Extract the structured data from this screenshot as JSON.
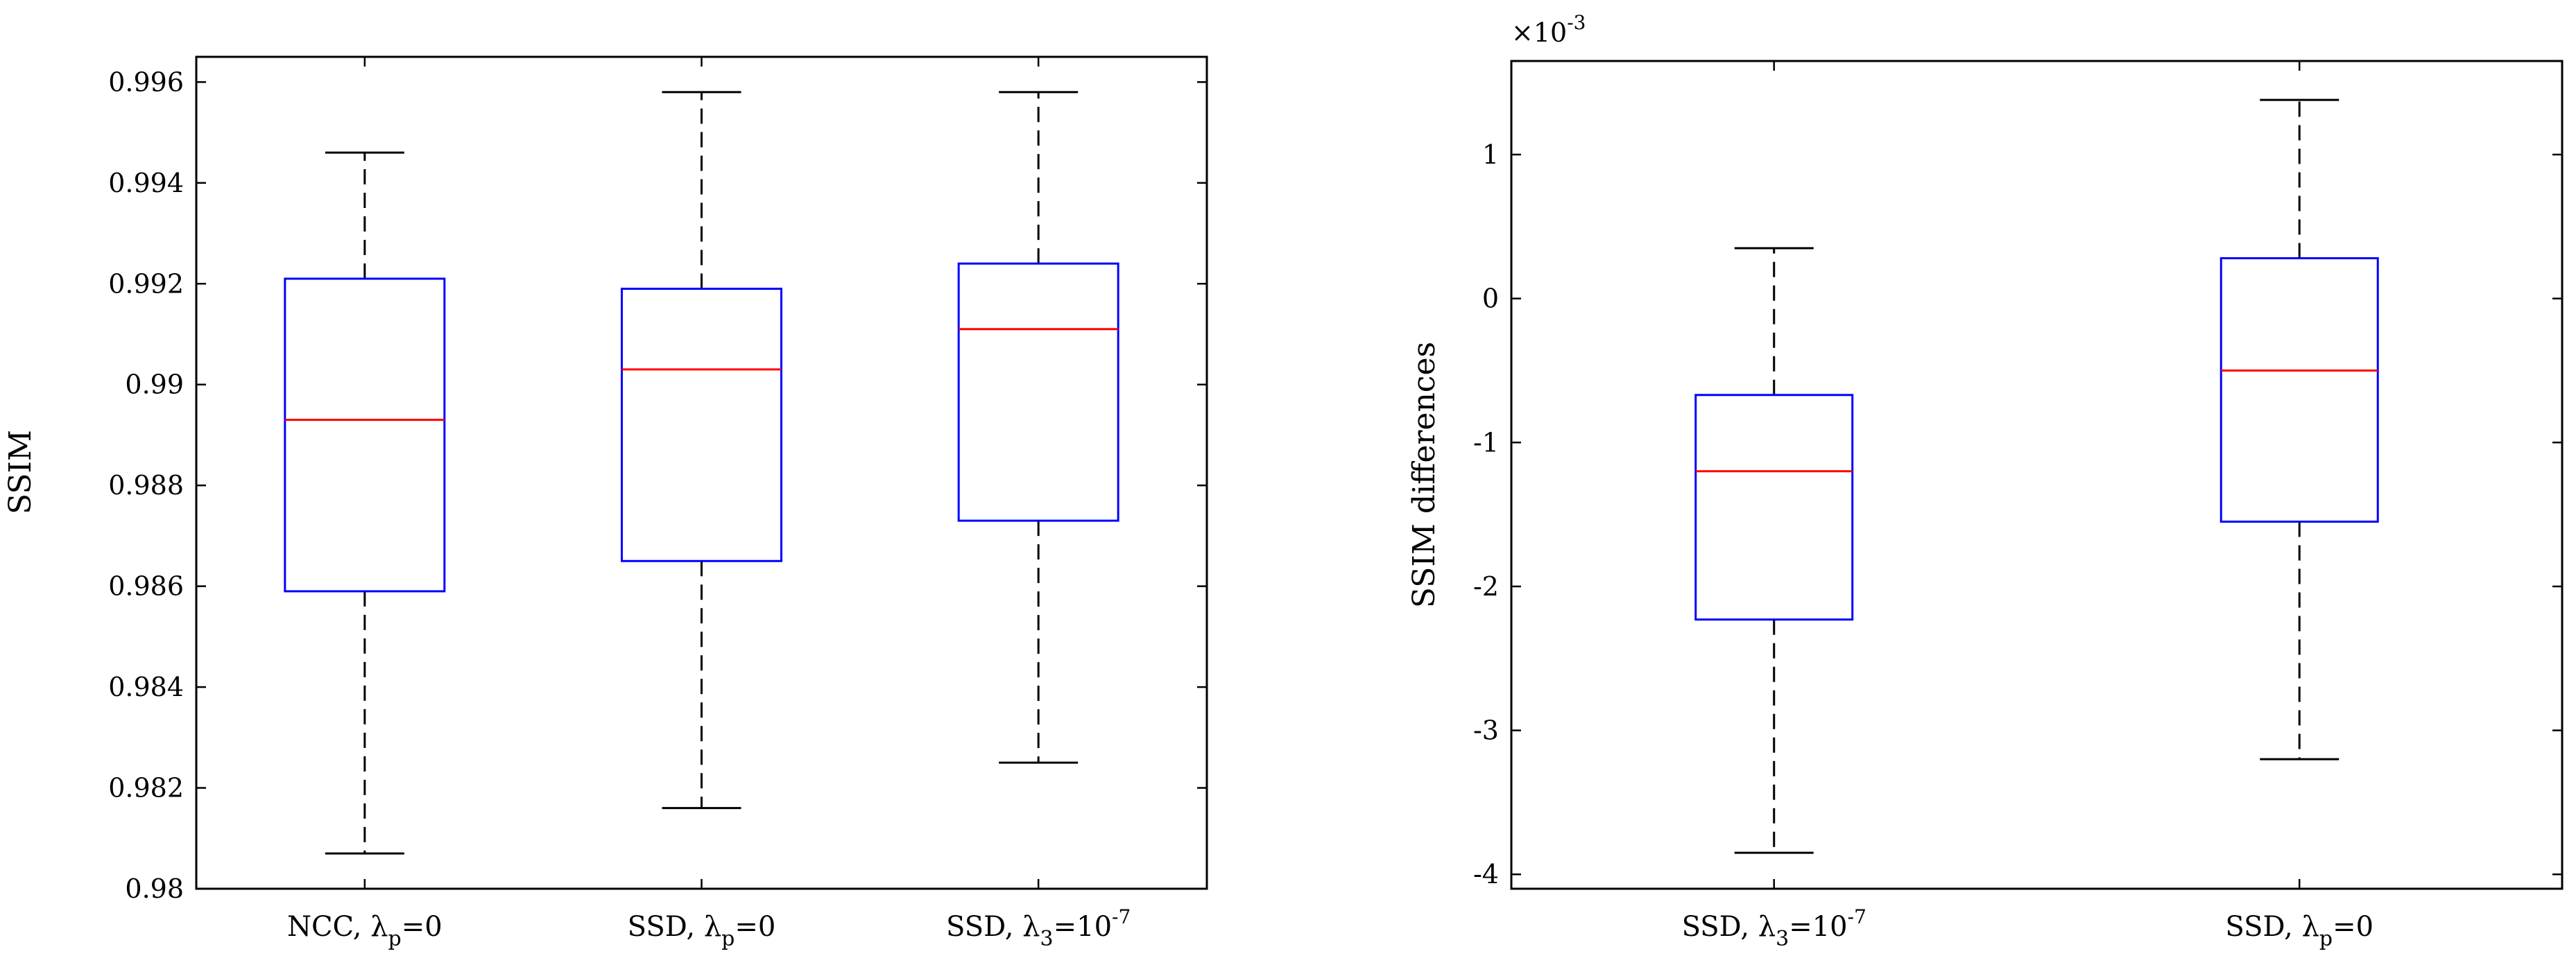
{
  "chart_data": [
    {
      "type": "boxplot",
      "ylabel": "SSIM",
      "ylim": [
        0.98,
        0.9965
      ],
      "yticks": [
        0.98,
        0.982,
        0.984,
        0.986,
        0.988,
        0.99,
        0.992,
        0.994,
        0.996
      ],
      "ytick_labels": [
        "0.98",
        "0.982",
        "0.984",
        "0.986",
        "0.988",
        "0.99",
        "0.992",
        "0.994",
        "0.996"
      ],
      "categories": [
        {
          "label": "NCC, λ",
          "sub": "p",
          "sup": "",
          "suffix": "=0"
        },
        {
          "label": "SSD, λ",
          "sub": "p",
          "sup": "",
          "suffix": "=0"
        },
        {
          "label": "SSD, λ",
          "sub": "3",
          "sup": "-7",
          "suffix": "=10"
        }
      ],
      "boxes": [
        {
          "whisker_low": 0.9807,
          "q1": 0.9859,
          "median": 0.9893,
          "q3": 0.9921,
          "whisker_high": 0.9946
        },
        {
          "whisker_low": 0.9816,
          "q1": 0.9865,
          "median": 0.9903,
          "q3": 0.9919,
          "whisker_high": 0.9958
        },
        {
          "whisker_low": 0.9825,
          "q1": 0.9873,
          "median": 0.9911,
          "q3": 0.9924,
          "whisker_high": 0.9958
        }
      ],
      "grid": false,
      "colors": {
        "box": "#0000ff",
        "median": "#ff0000",
        "whisker": "#000000"
      }
    },
    {
      "type": "boxplot",
      "ylabel": "SSIM differences",
      "exponent_base": "×10",
      "exponent_power": "-3",
      "ylim": [
        -4.1,
        1.65
      ],
      "yticks": [
        -4,
        -3,
        -2,
        -1,
        0,
        1
      ],
      "ytick_labels": [
        "-4",
        "-3",
        "-2",
        "-1",
        "0",
        "1"
      ],
      "categories": [
        {
          "label": "SSD, λ",
          "sub": "3",
          "sup": "-7",
          "suffix": "=10"
        },
        {
          "label": "SSD, λ",
          "sub": "p",
          "sup": "",
          "suffix": "=0"
        }
      ],
      "boxes": [
        {
          "whisker_low": -3.85,
          "q1": -2.23,
          "median": -1.2,
          "q3": -0.67,
          "whisker_high": 0.35
        },
        {
          "whisker_low": -3.2,
          "q1": -1.55,
          "median": -0.5,
          "q3": 0.28,
          "whisker_high": 1.38
        }
      ],
      "grid": false,
      "colors": {
        "box": "#0000ff",
        "median": "#ff0000",
        "whisker": "#000000"
      }
    }
  ]
}
